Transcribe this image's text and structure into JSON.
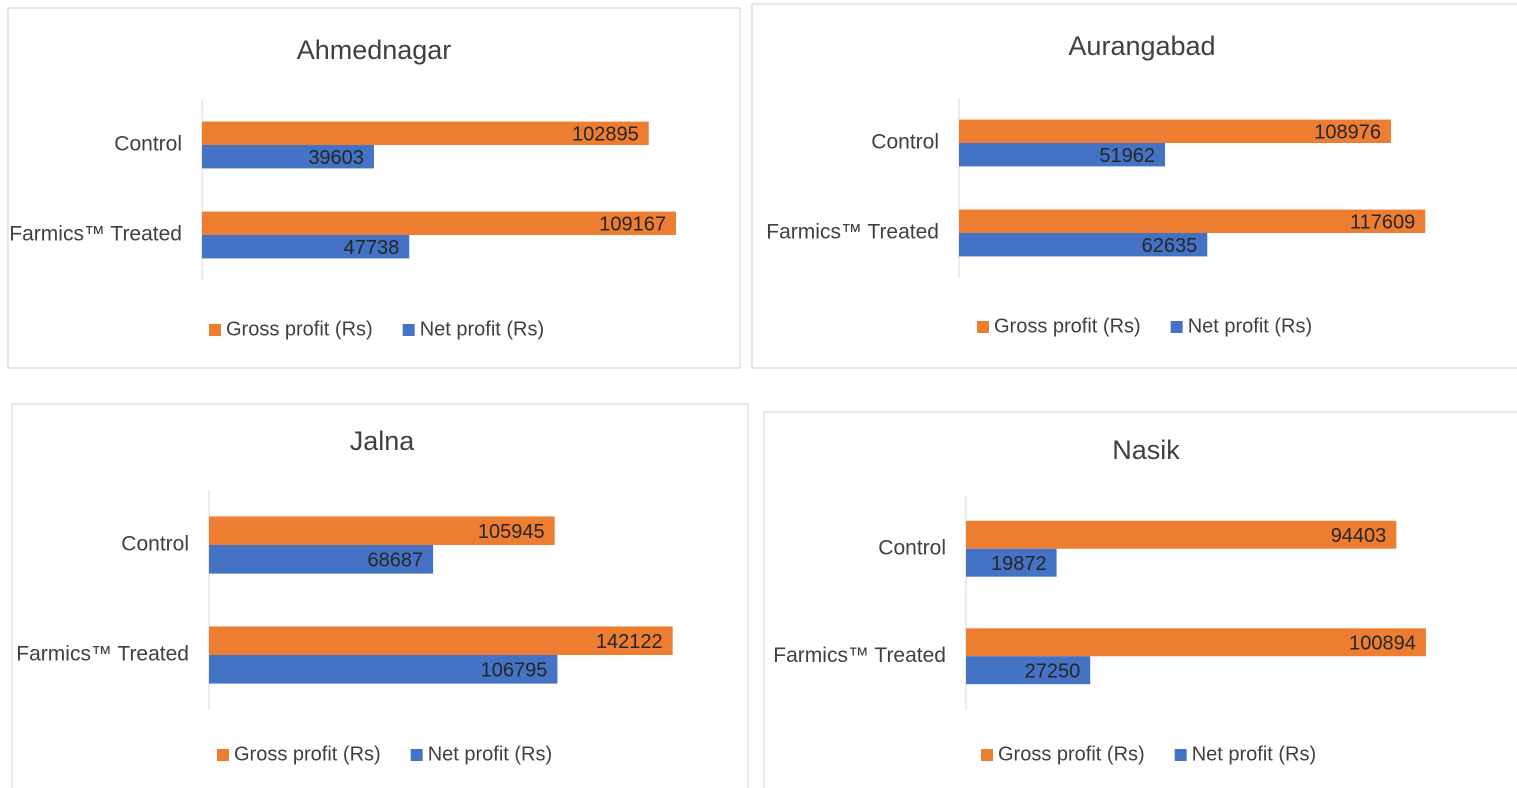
{
  "chart_data": [
    {
      "type": "bar",
      "orientation": "horizontal",
      "title": "Ahmednagar",
      "categories": [
        "Control",
        "Farmics™ Treated"
      ],
      "series": [
        {
          "name": "Gross profit (Rs)",
          "color": "#ed7d31",
          "values": [
            102895,
            109167
          ]
        },
        {
          "name": "Net profit (Rs)",
          "color": "#4472c4",
          "values": [
            39603,
            47738
          ]
        }
      ],
      "xlim": [
        0,
        120000
      ],
      "legend": "bottom"
    },
    {
      "type": "bar",
      "orientation": "horizontal",
      "title": "Aurangabad",
      "categories": [
        "Control",
        "Farmics™ Treated"
      ],
      "series": [
        {
          "name": "Gross profit (Rs)",
          "color": "#ed7d31",
          "values": [
            108976,
            117609
          ]
        },
        {
          "name": "Net profit (Rs)",
          "color": "#4472c4",
          "values": [
            51962,
            62635
          ]
        }
      ],
      "xlim": [
        0,
        140000
      ],
      "legend": "bottom"
    },
    {
      "type": "bar",
      "orientation": "horizontal",
      "title": "Jalna",
      "categories": [
        "Control",
        "Farmics™ Treated"
      ],
      "series": [
        {
          "name": "Gross profit (Rs)",
          "color": "#ed7d31",
          "values": [
            105945,
            142122
          ]
        },
        {
          "name": "Net profit (Rs)",
          "color": "#4472c4",
          "values": [
            68687,
            106795
          ]
        }
      ],
      "xlim": [
        0,
        160000
      ],
      "legend": "bottom"
    },
    {
      "type": "bar",
      "orientation": "horizontal",
      "title": "Nasik",
      "categories": [
        "Control",
        "Farmics™ Treated"
      ],
      "series": [
        {
          "name": "Gross profit (Rs)",
          "color": "#ed7d31",
          "values": [
            94403,
            100894
          ]
        },
        {
          "name": "Net profit (Rs)",
          "color": "#4472c4",
          "values": [
            19872,
            27250
          ]
        }
      ],
      "xlim": [
        0,
        120000
      ],
      "legend": "bottom"
    }
  ]
}
